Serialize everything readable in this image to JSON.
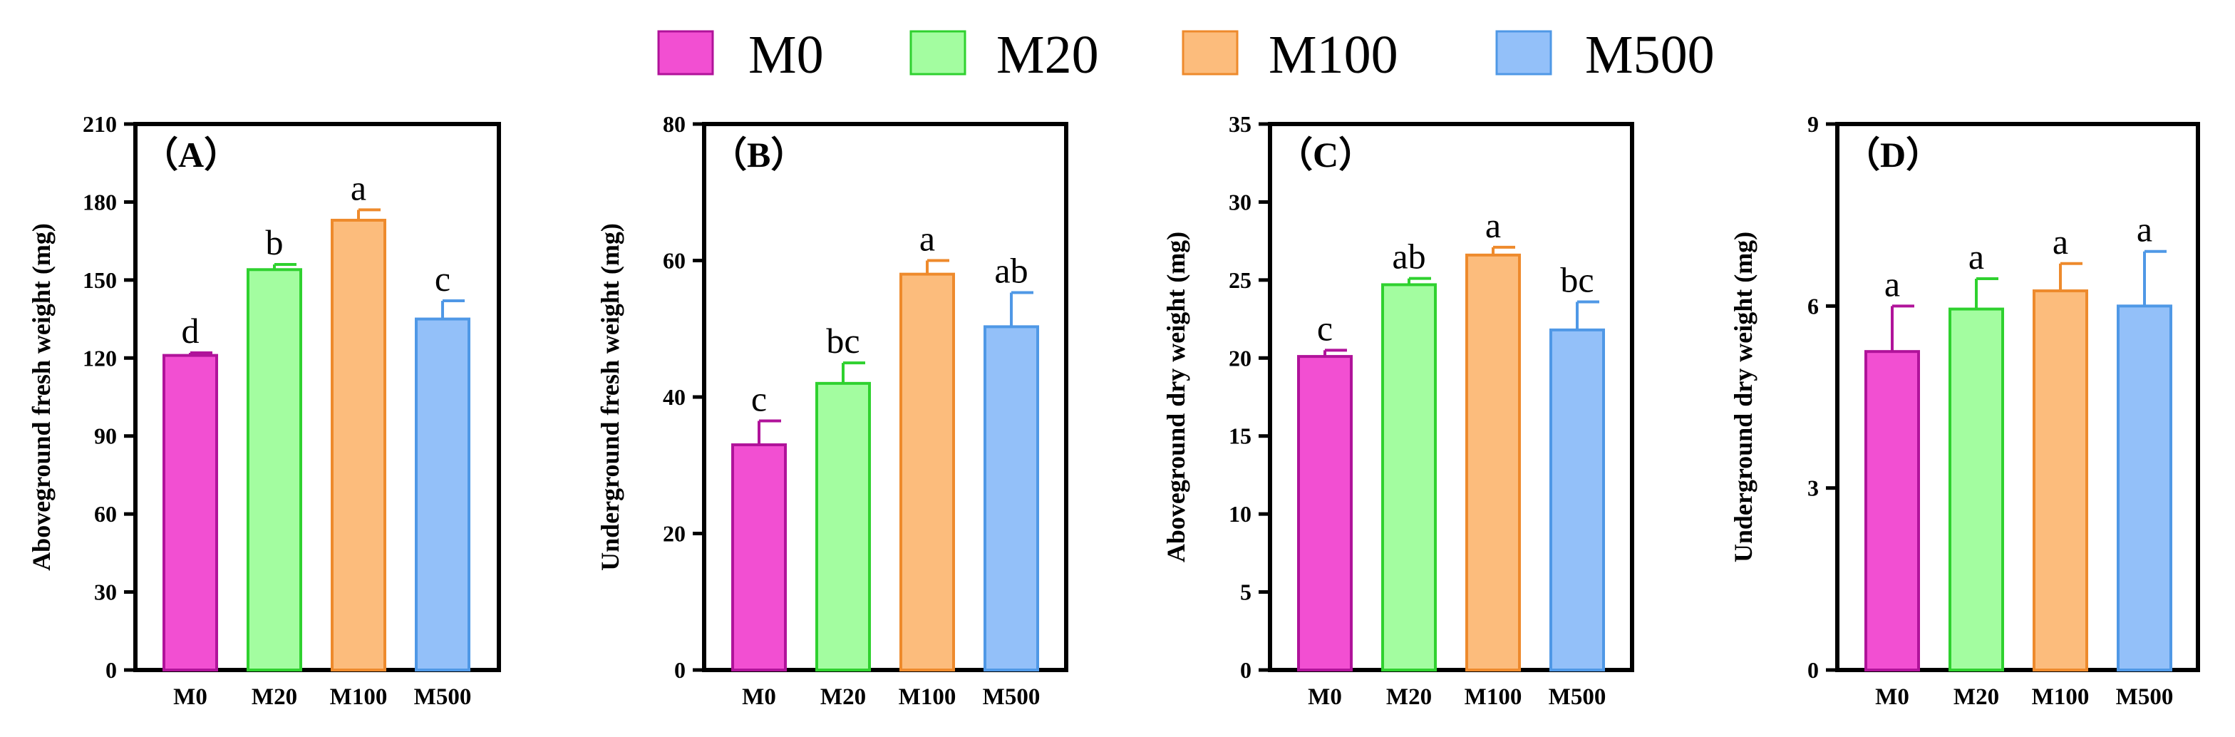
{
  "legend": [
    {
      "label": "M0",
      "fill": "#f24fd2",
      "edge": "#b0139a"
    },
    {
      "label": "M20",
      "fill": "#a3fda0",
      "edge": "#2fd12f"
    },
    {
      "label": "M100",
      "fill": "#fcbc7c",
      "edge": "#ee8a2c"
    },
    {
      "label": "M500",
      "fill": "#93c0f9",
      "edge": "#4f98e6"
    }
  ],
  "chart_data": [
    {
      "type": "bar",
      "panel": "A",
      "panel_label": "（A）",
      "ylabel": "Aboveground fresh weight (mg)",
      "categories": [
        "M0",
        "M20",
        "M100",
        "M500"
      ],
      "values": [
        121,
        154,
        173,
        135
      ],
      "errors": [
        1,
        2,
        4,
        7
      ],
      "letters": [
        "d",
        "b",
        "a",
        "c"
      ],
      "ylim": [
        0,
        210
      ],
      "yticks": [
        0,
        30,
        60,
        90,
        120,
        150,
        180,
        210
      ],
      "ytick_labels": [
        "0",
        "30",
        "60",
        "90",
        "120",
        "150",
        "180",
        "210"
      ]
    },
    {
      "type": "bar",
      "panel": "B",
      "panel_label": "（B）",
      "ylabel": "Underground fresh weight (mg)",
      "categories": [
        "M0",
        "M20",
        "M100",
        "M500"
      ],
      "values": [
        33,
        42,
        58,
        50.3
      ],
      "errors": [
        3.5,
        3,
        2,
        5
      ],
      "letters": [
        "c",
        "bc",
        "a",
        "ab"
      ],
      "ylim": [
        0,
        80
      ],
      "yticks": [
        0,
        20,
        40,
        60,
        80
      ],
      "ytick_labels": [
        "0",
        "20",
        "40",
        "60",
        "80"
      ]
    },
    {
      "type": "bar",
      "panel": "C",
      "panel_label": "（C）",
      "ylabel": "Aboveground dry weight (mg)",
      "categories": [
        "M0",
        "M20",
        "M100",
        "M500"
      ],
      "values": [
        20.1,
        24.7,
        26.6,
        21.8
      ],
      "errors": [
        0.4,
        0.4,
        0.5,
        1.8
      ],
      "letters": [
        "c",
        "ab",
        "a",
        "bc"
      ],
      "ylim": [
        0,
        35
      ],
      "yticks": [
        0,
        5,
        10,
        15,
        20,
        25,
        30,
        35
      ],
      "ytick_labels": [
        "0",
        "5",
        "10",
        "15",
        "20",
        "25",
        "30",
        "35"
      ]
    },
    {
      "type": "bar",
      "panel": "D",
      "panel_label": "（D）",
      "ylabel": "Underground dry weight (mg)",
      "categories": [
        "M0",
        "M20",
        "M100",
        "M500"
      ],
      "values": [
        5.25,
        5.95,
        6.25,
        6.0
      ],
      "errors": [
        0.75,
        0.5,
        0.45,
        0.9
      ],
      "letters": [
        "a",
        "a",
        "a",
        "a"
      ],
      "ylim": [
        0,
        9
      ],
      "yticks": [
        0,
        3,
        6,
        9
      ],
      "ytick_labels": [
        "0",
        "3",
        "6",
        "9"
      ]
    }
  ]
}
